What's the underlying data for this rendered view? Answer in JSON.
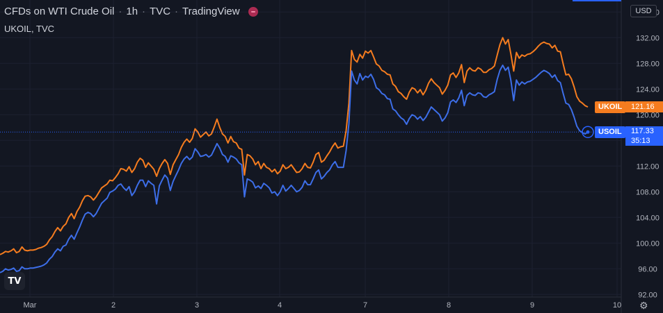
{
  "header": {
    "title_parts": [
      "CFDs on WTI Crude Oil",
      "1h",
      "TVC",
      "TradingView"
    ],
    "separator": "·",
    "symbol_line": "UKOIL, TVC"
  },
  "currency_label": "USD",
  "logo_text": "TV",
  "settings_icon": "gear-icon",
  "colors": {
    "background": "#131722",
    "grid": "#1c2030",
    "text": "#b2b5be",
    "ukoil": "#f57c1f",
    "usoil": "#2962ff",
    "usoil_line": "#3d6ee8"
  },
  "markers": {
    "ukoil": {
      "label": "UKOIL",
      "price": "121.16"
    },
    "usoil": {
      "label": "USOIL",
      "price": "117.33",
      "countdown": "35:13"
    }
  },
  "chart_data": {
    "type": "line",
    "title": "",
    "xlabel": "",
    "ylabel": "",
    "x_ticks": [
      "Mar",
      "2",
      "3",
      "4",
      "7",
      "8",
      "9",
      "10"
    ],
    "y_ticks": [
      "92.00",
      "96.00",
      "100.00",
      "104.00",
      "108.00",
      "112.00",
      "116.00",
      "120.00",
      "124.00",
      "128.00",
      "132.00",
      "136.00"
    ],
    "ylim": [
      91.0,
      137.0
    ],
    "grid": true,
    "series": [
      {
        "name": "UKOIL",
        "values": [
          98.2,
          98.4,
          98.7,
          98.6,
          98.8,
          99.1,
          98.5,
          98.7,
          99.4,
          98.9,
          98.8,
          98.9,
          98.9,
          99.0,
          99.2,
          99.3,
          99.5,
          99.8,
          100.5,
          101.0,
          101.8,
          102.4,
          101.9,
          102.6,
          103.0,
          104.0,
          104.6,
          103.8,
          104.9,
          105.6,
          106.6,
          107.3,
          107.4,
          107.2,
          106.7,
          107.2,
          107.9,
          108.6,
          108.9,
          109.2,
          109.8,
          109.7,
          110.2,
          110.8,
          111.6,
          111.5,
          111.2,
          111.9,
          111.0,
          111.6,
          112.6,
          113.2,
          112.9,
          111.8,
          112.5,
          112.0,
          111.5,
          110.4,
          111.6,
          112.4,
          113.0,
          112.4,
          110.7,
          112.2,
          113.0,
          113.8,
          114.9,
          115.7,
          116.2,
          115.7,
          116.3,
          117.8,
          117.3,
          116.5,
          116.9,
          117.3,
          116.7,
          117.0,
          118.1,
          119.3,
          118.0,
          117.0,
          116.6,
          115.6,
          116.6,
          115.8,
          115.6,
          114.8,
          114.6,
          110.6,
          113.8,
          113.6,
          113.1,
          112.2,
          112.7,
          111.6,
          112.4,
          111.8,
          111.6,
          111.1,
          111.5,
          110.8,
          111.2,
          112.2,
          111.6,
          111.8,
          112.2,
          111.6,
          111.0,
          111.1,
          111.6,
          112.4,
          111.8,
          111.7,
          112.6,
          113.8,
          114.1,
          112.6,
          112.9,
          113.6,
          114.2,
          115.0,
          115.6,
          114.8,
          115.0,
          115.1,
          117.5,
          121.8,
          130.0,
          128.6,
          128.2,
          129.4,
          128.8,
          129.9,
          129.6,
          130.0,
          129.0,
          127.9,
          127.6,
          126.9,
          126.7,
          126.3,
          126.2,
          124.8,
          124.4,
          123.6,
          123.3,
          122.8,
          122.4,
          123.5,
          124.2,
          124.0,
          123.4,
          123.9,
          123.1,
          123.8,
          124.9,
          125.6,
          125.0,
          124.6,
          124.2,
          123.2,
          123.8,
          124.6,
          126.2,
          126.5,
          125.8,
          126.5,
          127.8,
          125.0,
          126.8,
          127.3,
          126.9,
          126.8,
          127.3,
          127.1,
          126.6,
          126.6,
          127.0,
          127.2,
          127.6,
          129.3,
          130.9,
          132.0,
          131.0,
          131.7,
          129.4,
          126.8,
          129.7,
          128.8,
          129.3,
          129.1,
          129.4,
          129.5,
          129.8,
          130.2,
          130.7,
          131.1,
          131.3,
          131.1,
          131.0,
          130.4,
          130.8,
          129.9,
          129.8,
          127.9,
          126.2,
          126.3,
          125.6,
          124.3,
          122.8,
          122.1,
          121.8,
          121.4,
          121.2
        ]
      },
      {
        "name": "USOIL",
        "values": [
          95.4,
          95.6,
          96.0,
          95.8,
          95.9,
          96.1,
          95.6,
          95.7,
          96.3,
          96.0,
          96.0,
          96.1,
          96.1,
          96.2,
          96.3,
          96.4,
          96.6,
          96.9,
          97.5,
          97.9,
          98.6,
          99.1,
          98.8,
          99.5,
          99.7,
          100.6,
          101.2,
          100.6,
          101.6,
          102.5,
          103.6,
          104.5,
          104.8,
          104.6,
          104.1,
          104.6,
          105.4,
          106.2,
          106.6,
          107.0,
          107.9,
          108.1,
          108.4,
          109.0,
          109.2,
          108.6,
          108.2,
          108.8,
          107.4,
          108.0,
          109.0,
          109.8,
          109.8,
          108.8,
          109.7,
          109.3,
          109.0,
          106.1,
          108.9,
          109.8,
          110.6,
          110.1,
          108.2,
          109.6,
          110.5,
          111.4,
          112.4,
          113.1,
          113.5,
          113.0,
          113.4,
          114.7,
          114.2,
          113.5,
          113.6,
          113.8,
          113.4,
          113.7,
          114.6,
          115.5,
          114.8,
          113.8,
          113.5,
          112.6,
          113.6,
          113.4,
          113.1,
          112.5,
          112.2,
          107.2,
          110.0,
          109.8,
          109.5,
          108.6,
          108.9,
          108.5,
          109.3,
          109.0,
          108.6,
          107.8,
          108.0,
          107.4,
          108.0,
          109.0,
          108.1,
          108.5,
          109.0,
          108.5,
          108.0,
          108.2,
          108.7,
          109.7,
          109.1,
          109.1,
          110.0,
          111.0,
          111.4,
          110.0,
          110.4,
          111.0,
          111.4,
          112.2,
          112.7,
          111.8,
          111.8,
          111.8,
          114.4,
          118.6,
          126.8,
          125.4,
          124.8,
          126.4,
          125.4,
          126.0,
          125.8,
          126.3,
          125.5,
          124.2,
          123.9,
          123.3,
          123.1,
          122.5,
          122.4,
          120.9,
          120.6,
          120.0,
          119.5,
          119.2,
          118.5,
          119.4,
          120.0,
          119.8,
          119.3,
          119.7,
          119.1,
          119.6,
          120.4,
          121.2,
          120.8,
          120.4,
          120.0,
          119.0,
          119.5,
          120.3,
          122.0,
          122.3,
          121.9,
          122.6,
          123.8,
          121.4,
          123.0,
          123.4,
          123.1,
          123.0,
          123.4,
          123.3,
          122.8,
          122.7,
          123.1,
          123.3,
          123.6,
          125.5,
          126.9,
          127.7,
          126.9,
          127.4,
          125.3,
          122.2,
          125.4,
          124.6,
          125.1,
          124.8,
          125.1,
          125.2,
          125.5,
          125.8,
          126.2,
          126.6,
          126.9,
          126.7,
          126.4,
          125.8,
          126.2,
          125.3,
          125.0,
          123.3,
          121.8,
          121.6,
          120.8,
          119.6,
          118.2,
          117.5,
          117.2,
          117.0,
          117.3
        ]
      }
    ]
  }
}
